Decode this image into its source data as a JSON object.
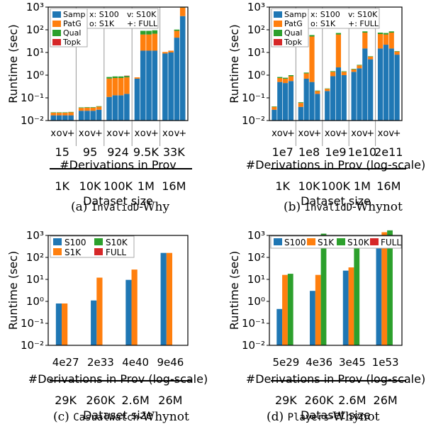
{
  "colors": {
    "S100": "#1f77b4",
    "S1K": "#ff7f0e",
    "S10K": "#2ca02c",
    "FULL": "#d62728",
    "Samp": "#1f77b4",
    "PatG": "#ff7f0e",
    "Qual": "#2ca02c",
    "Topk": "#d62728"
  },
  "captions": [
    {
      "label": "(a)",
      "dataset": "InvalidD",
      "suffix": "-Why"
    },
    {
      "label": "(b)",
      "dataset": "InvalidD",
      "suffix": "-Whynot"
    },
    {
      "label": "(c)",
      "dataset": "CasualWatch",
      "suffix": "-Whynot"
    },
    {
      "label": "(d)",
      "dataset": "Players",
      "suffix": "-Whynot"
    }
  ],
  "chart_data": [
    {
      "type": "bar",
      "stacked": true,
      "scale": "log",
      "ylim": [
        0.01,
        1000
      ],
      "ylabel": "Runtime (sec)",
      "xlabel": "#Derivations in Prov",
      "xlabel2": "Dataset size",
      "yticks": [
        "10⁻²",
        "10⁻¹",
        "10⁰",
        "10¹",
        "10²",
        "10³"
      ],
      "groups": [
        "15",
        "95",
        "924",
        "9.5K",
        "33K"
      ],
      "dataset_sizes": [
        "1K",
        "10K",
        "100K",
        "1M",
        "16M"
      ],
      "bar_labels": [
        "x",
        "o",
        "v",
        "+"
      ],
      "legend_components": [
        "Samp",
        "PatG",
        "Qual",
        "Topk"
      ],
      "legend_settings": [
        "x: S100",
        "v: S10K",
        "o: S1K",
        "+: FULL"
      ],
      "bars": [
        [
          [
            0.017,
            0.005,
            0.001,
            0
          ],
          [
            0.017,
            0.005,
            0.001,
            0
          ],
          [
            0.017,
            0.005,
            0.001,
            0
          ],
          [
            0.017,
            0.006,
            0.001,
            0
          ]
        ],
        [
          [
            0.027,
            0.009,
            0.002,
            0
          ],
          [
            0.027,
            0.01,
            0.002,
            0
          ],
          [
            0.027,
            0.01,
            0.002,
            0
          ],
          [
            0.03,
            0.011,
            0.002,
            0
          ]
        ],
        [
          [
            0.11,
            0.6,
            0.12,
            0
          ],
          [
            0.13,
            0.62,
            0.13,
            0
          ],
          [
            0.13,
            0.62,
            0.13,
            0
          ],
          [
            0.15,
            0.65,
            0.12,
            0.03
          ]
        ],
        [
          [
            0.7,
            0.1,
            0,
            0
          ],
          [
            12,
            50,
            28,
            0
          ],
          [
            12,
            50,
            28,
            0
          ],
          [
            12,
            55,
            28,
            0
          ]
        ],
        [
          [
            9,
            1.5,
            0,
            0
          ],
          [
            10,
            2,
            0,
            0
          ],
          [
            45,
            45,
            12,
            0
          ],
          [
            400,
            550,
            50,
            0
          ]
        ]
      ]
    },
    {
      "type": "bar",
      "stacked": true,
      "scale": "log",
      "ylim": [
        0.01,
        1000
      ],
      "ylabel": "Runtime (sec)",
      "xlabel": "#Derivations in Prov (log-scale)",
      "xlabel2": "Dataset size",
      "yticks": [
        "10⁻²",
        "10⁻¹",
        "10⁰",
        "10¹",
        "10²",
        "10³"
      ],
      "groups": [
        "1e7",
        "1e8",
        "1e9",
        "1e10",
        "2e11"
      ],
      "dataset_sizes": [
        "1K",
        "10K",
        "100K",
        "1M",
        "16M"
      ],
      "bar_labels": [
        "x",
        "o",
        "v",
        "+"
      ],
      "legend_components": [
        "Samp",
        "PatG",
        "Qual",
        "Topk"
      ],
      "legend_settings": [
        "x: S100",
        "v: S10K",
        "o: S1K",
        "+: FULL"
      ],
      "bars": [
        [
          [
            0.03,
            0.01,
            0.002,
            0
          ],
          [
            0.5,
            0.25,
            0.08,
            0
          ],
          [
            0.45,
            0.25,
            0.07,
            0
          ],
          [
            0.55,
            0.35,
            0.1,
            0
          ]
        ],
        [
          [
            0.04,
            0.02,
            0.004,
            0
          ],
          [
            0.7,
            0.5,
            0.1,
            0
          ],
          [
            0.5,
            50,
            8,
            0
          ],
          [
            0.15,
            0.05,
            0.01,
            0
          ]
        ],
        [
          [
            0.2,
            0.05,
            0.01,
            0
          ],
          [
            0.9,
            0.5,
            0.1,
            0
          ],
          [
            2.2,
            60,
            10,
            0
          ],
          [
            1,
            0.4,
            0.08,
            0
          ]
        ],
        [
          [
            1.4,
            0.4,
            0.1,
            0
          ],
          [
            2,
            0.7,
            0.15,
            0
          ],
          [
            15,
            60,
            10,
            0
          ],
          [
            5,
            1.5,
            0.3,
            0
          ]
        ],
        [
          [
            15,
            50,
            10,
            0
          ],
          [
            22,
            40,
            10,
            0
          ],
          [
            15,
            60,
            10,
            0
          ],
          [
            8,
            3,
            0.5,
            0
          ]
        ]
      ]
    },
    {
      "type": "bar",
      "scale": "log",
      "ylim": [
        0.01,
        1000
      ],
      "ylabel": "Runtime (sec)",
      "xlabel": "#Derivations in Prov (log-scale)",
      "xlabel2": "Dataset size",
      "yticks": [
        "10⁻²",
        "10⁻¹",
        "10⁰",
        "10¹",
        "10²",
        "10³"
      ],
      "categories": [
        "4e27",
        "2e33",
        "4e40",
        "9e46"
      ],
      "dataset_sizes": [
        "29K",
        "260K",
        "2.6M",
        "26M"
      ],
      "series": [
        {
          "name": "S100",
          "values": [
            0.8,
            1.1,
            9.5,
            160
          ]
        },
        {
          "name": "S1K",
          "values": [
            0.8,
            12,
            28,
            160
          ]
        },
        {
          "name": "S10K",
          "values": [
            null,
            null,
            null,
            null
          ]
        },
        {
          "name": "FULL",
          "values": [
            null,
            null,
            null,
            null
          ]
        }
      ]
    },
    {
      "type": "bar",
      "scale": "log",
      "ylim": [
        0.01,
        3000
      ],
      "ylabel": "Runtime (sec)",
      "xlabel": "#Derivations in Prov (log-scale)",
      "xlabel2": "Dataset size",
      "yticks": [
        "10⁻²",
        "10⁻¹",
        "10⁰",
        "10¹",
        "10²",
        "10³"
      ],
      "categories": [
        "5e29",
        "4e36",
        "3e45",
        "1e53"
      ],
      "dataset_sizes": [
        "29K",
        "260K",
        "2.6M",
        "26M"
      ],
      "series": [
        {
          "name": "S100",
          "values": [
            0.45,
            3,
            25,
            450
          ]
        },
        {
          "name": "S1K",
          "values": [
            16,
            16,
            35,
            1400
          ]
        },
        {
          "name": "S10K",
          "values": [
            18,
            1200,
            950,
            1700
          ]
        },
        {
          "name": "FULL",
          "values": [
            null,
            null,
            null,
            null
          ]
        }
      ]
    }
  ]
}
